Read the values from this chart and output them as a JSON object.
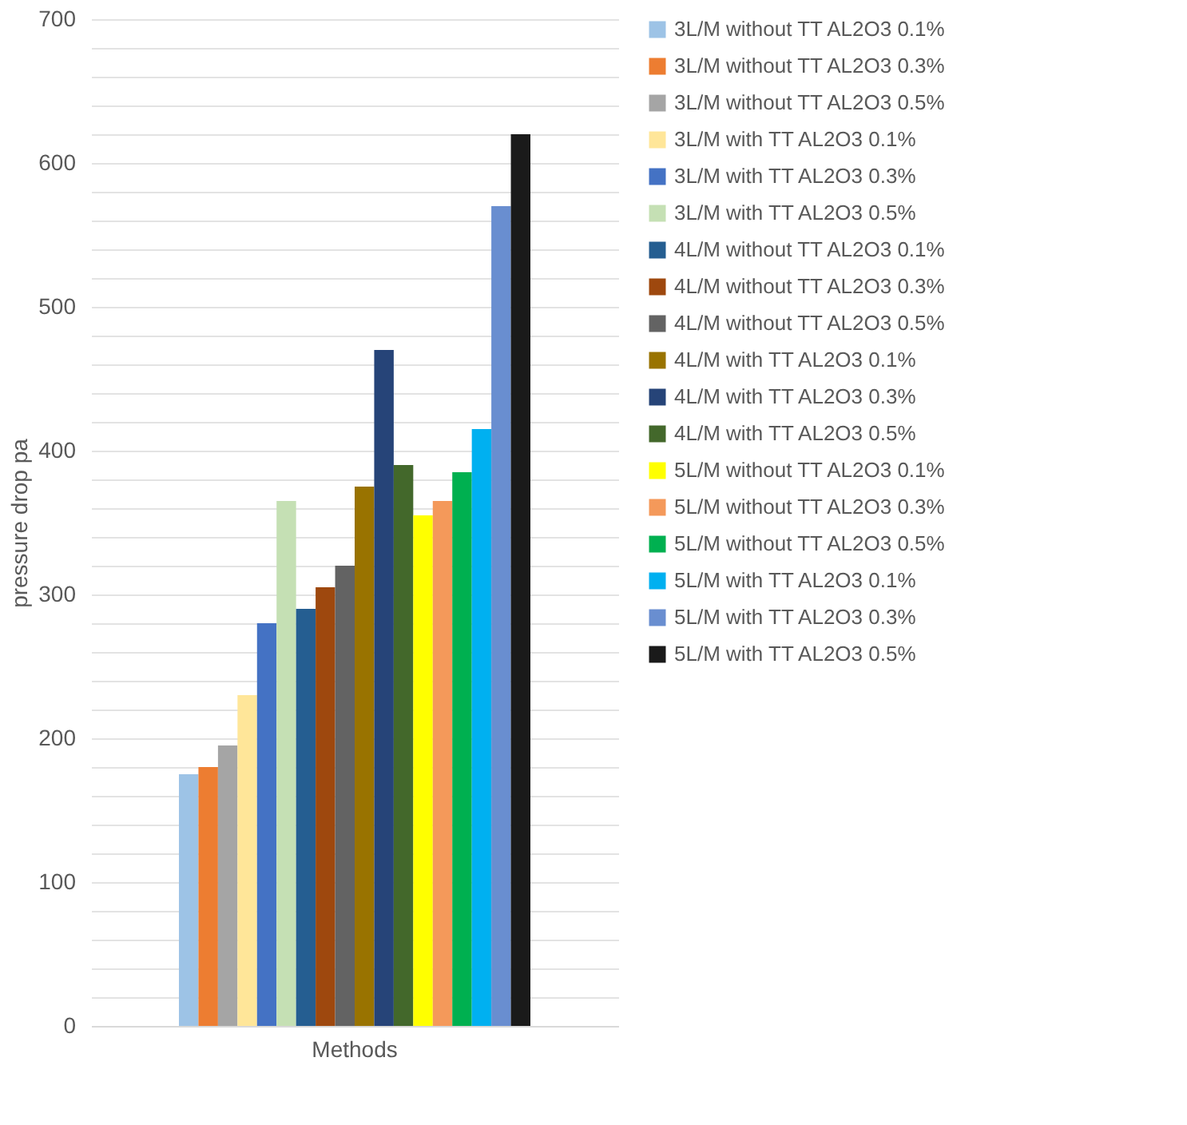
{
  "chart_data": {
    "type": "bar",
    "ylabel": "pressure drop pa",
    "categories": [
      "Methods"
    ],
    "ylim": [
      0,
      700
    ],
    "yticks": [
      0,
      {
        "value": 20,
        "label": null
      },
      {
        "value": 40,
        "label": null
      },
      {
        "value": 60,
        "label": null
      },
      {
        "value": 80,
        "label": null
      },
      100,
      {
        "value": 120,
        "label": null
      },
      {
        "value": 140,
        "label": null
      },
      {
        "value": 160,
        "label": null
      },
      {
        "value": 180,
        "label": null
      },
      200,
      {
        "value": 220,
        "label": null
      },
      {
        "value": 240,
        "label": null
      },
      {
        "value": 260,
        "label": null
      },
      {
        "value": 280,
        "label": null
      },
      300,
      {
        "value": 320,
        "label": null
      },
      {
        "value": 340,
        "label": null
      },
      {
        "value": 360,
        "label": null
      },
      {
        "value": 380,
        "label": null
      },
      400,
      {
        "value": 420,
        "label": null
      },
      {
        "value": 440,
        "label": null
      },
      {
        "value": 460,
        "label": null
      },
      {
        "value": 480,
        "label": null
      },
      500,
      {
        "value": 520,
        "label": null
      },
      {
        "value": 540,
        "label": null
      },
      {
        "value": 560,
        "label": null
      },
      {
        "value": 580,
        "label": null
      },
      600,
      {
        "value": 620,
        "label": null
      },
      {
        "value": 640,
        "label": null
      },
      {
        "value": 660,
        "label": null
      },
      {
        "value": 680,
        "label": null
      },
      700
    ],
    "grid": "y",
    "legend": "right",
    "series": [
      {
        "name": "3L/M without TT AL2O3 0.1%",
        "color": "#9dc3e6",
        "values": [
          175
        ]
      },
      {
        "name": "3L/M without TT AL2O3 0.3%",
        "color": "#ed7d31",
        "values": [
          180
        ]
      },
      {
        "name": "3L/M without TT AL2O3 0.5%",
        "color": "#a5a5a5",
        "values": [
          195
        ]
      },
      {
        "name": "3L/M with TT AL2O3 0.1%",
        "color": "#ffe699",
        "values": [
          230
        ]
      },
      {
        "name": "3L/M with TT AL2O3 0.3%",
        "color": "#4472c4",
        "values": [
          280
        ]
      },
      {
        "name": "3L/M with TT AL2O3 0.5%",
        "color": "#c5e0b4",
        "values": [
          365
        ]
      },
      {
        "name": "4L/M without TT AL2O3 0.1%",
        "color": "#255e91",
        "values": [
          290
        ]
      },
      {
        "name": "4L/M without TT AL2O3 0.3%",
        "color": "#9e480e",
        "values": [
          305
        ]
      },
      {
        "name": "4L/M without TT AL2O3 0.5%",
        "color": "#636363",
        "values": [
          320
        ]
      },
      {
        "name": "4L/M with TT AL2O3 0.1%",
        "color": "#997300",
        "values": [
          375
        ]
      },
      {
        "name": "4L/M with TT AL2O3 0.3%",
        "color": "#264478",
        "values": [
          470
        ]
      },
      {
        "name": "4L/M with TT AL2O3 0.5%",
        "color": "#43682b",
        "values": [
          390
        ]
      },
      {
        "name": "5L/M without TT AL2O3 0.1%",
        "color": "#ffff00",
        "values": [
          355
        ]
      },
      {
        "name": "5L/M without TT AL2O3 0.3%",
        "color": "#f4995a",
        "values": [
          365
        ]
      },
      {
        "name": "5L/M without TT AL2O3 0.5%",
        "color": "#00b050",
        "values": [
          385
        ]
      },
      {
        "name": "5L/M with TT AL2O3 0.1%",
        "color": "#00b0f0",
        "values": [
          415
        ]
      },
      {
        "name": "5L/M with TT AL2O3 0.3%",
        "color": "#698ed0",
        "values": [
          570
        ]
      },
      {
        "name": "5L/M with TT AL2O3 0.5%",
        "color": "#1a1a1a",
        "values": [
          620
        ]
      }
    ]
  }
}
